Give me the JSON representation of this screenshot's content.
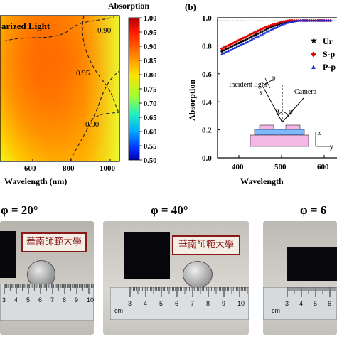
{
  "panel_a": {
    "title_label": "Absorption",
    "overlay_text": "arized Light",
    "xlabel": "Wavelength (nm)",
    "x_ticks": [
      "600",
      "800",
      "1000"
    ],
    "colorbar": {
      "ticks": [
        "1.00",
        "0.95",
        "0.90",
        "0.85",
        "0.80",
        "0.75",
        "0.70",
        "0.65",
        "0.60",
        "0.55",
        "0.50"
      ],
      "colors": [
        "#c00000",
        "#ff2000",
        "#ff8000",
        "#ffd000",
        "#c8ff00",
        "#40ff40",
        "#00e0c0",
        "#00a0ff",
        "#0040ff",
        "#0000c0"
      ]
    },
    "contour_labels": [
      "0.90",
      "0.95",
      "0.90"
    ]
  },
  "panel_b": {
    "panel_label": "(b)",
    "ylabel": "Absorption",
    "xlabel": "Wavelength",
    "y_ticks": [
      "1.0",
      "0.8",
      "0.6",
      "0.4",
      "0.2",
      "0.0"
    ],
    "x_ticks": [
      "400",
      "500",
      "600"
    ],
    "legend": [
      {
        "marker": "★",
        "label": "Ur",
        "color": "#000000"
      },
      {
        "marker": "◆",
        "label": "S-p",
        "color": "#e00000"
      },
      {
        "marker": "▲",
        "label": "P-p",
        "color": "#1a2fd6"
      }
    ],
    "inset": {
      "incident_label": "Incident light",
      "camera_label": "Camera",
      "theta": "θ",
      "phi": "φ",
      "s_label": "s",
      "p_label": "p",
      "z_label": "z",
      "y_label": "y"
    }
  },
  "chart_data": {
    "type": "line",
    "x": [
      360,
      380,
      400,
      420,
      440,
      460,
      480,
      500,
      520,
      540,
      560,
      580,
      600,
      620
    ],
    "series": [
      {
        "name": "Ur",
        "values": [
          0.76,
          0.79,
          0.82,
          0.85,
          0.88,
          0.91,
          0.94,
          0.96,
          0.97,
          0.98,
          0.98,
          0.98,
          0.98,
          0.98
        ]
      },
      {
        "name": "S-p",
        "values": [
          0.78,
          0.81,
          0.84,
          0.87,
          0.9,
          0.93,
          0.95,
          0.97,
          0.98,
          0.98,
          0.98,
          0.98,
          0.98,
          0.98
        ]
      },
      {
        "name": "P-p",
        "values": [
          0.74,
          0.77,
          0.8,
          0.83,
          0.86,
          0.89,
          0.92,
          0.95,
          0.97,
          0.98,
          0.98,
          0.98,
          0.98,
          0.98
        ]
      }
    ],
    "xlabel": "Wavelength",
    "ylabel": "Absorption",
    "xlim": [
      350,
      630
    ],
    "ylim": [
      0.0,
      1.0
    ]
  },
  "photos": [
    {
      "angle_label": "φ = 20°"
    },
    {
      "angle_label": "φ = 40°"
    },
    {
      "angle_label": "φ = 6"
    }
  ],
  "ruler": {
    "numbers": [
      "3",
      "4",
      "5",
      "6",
      "7",
      "8",
      "9",
      "10"
    ],
    "cm_label": "cm"
  },
  "card_text": "華南師範大學"
}
